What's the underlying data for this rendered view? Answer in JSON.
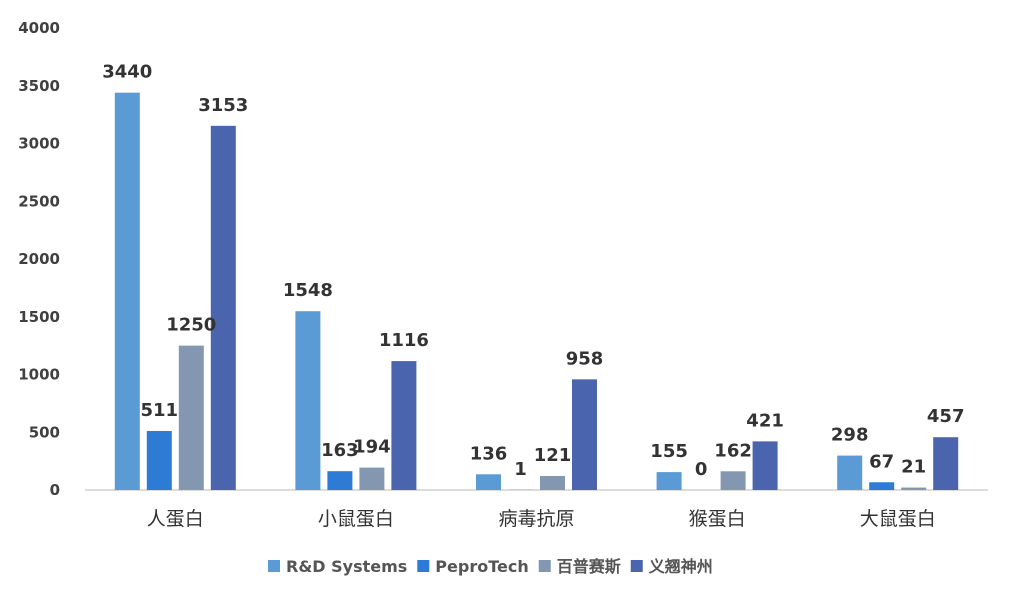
{
  "chart_data": {
    "type": "bar",
    "title": "",
    "xlabel": "",
    "ylabel": "",
    "ylim": [
      0,
      4000
    ],
    "yticks": [
      0,
      500,
      1000,
      1500,
      2000,
      2500,
      3000,
      3500,
      4000
    ],
    "grid": false,
    "legend_position": "bottom",
    "categories": [
      "人蛋白",
      "小鼠蛋白",
      "病毒抗原",
      "猴蛋白",
      "大鼠蛋白"
    ],
    "series": [
      {
        "name": "R&D Systems",
        "color": "#5B9BD5",
        "values": [
          3440,
          1548,
          136,
          155,
          298
        ]
      },
      {
        "name": "PeproTech",
        "color": "#2E7BD6",
        "values": [
          511,
          163,
          1,
          0,
          67
        ]
      },
      {
        "name": "百普赛斯",
        "color": "#8497B0",
        "values": [
          1250,
          194,
          121,
          162,
          21
        ]
      },
      {
        "name": "义翘神州",
        "color": "#4A65AE",
        "values": [
          3153,
          1116,
          958,
          421,
          457
        ]
      }
    ]
  }
}
